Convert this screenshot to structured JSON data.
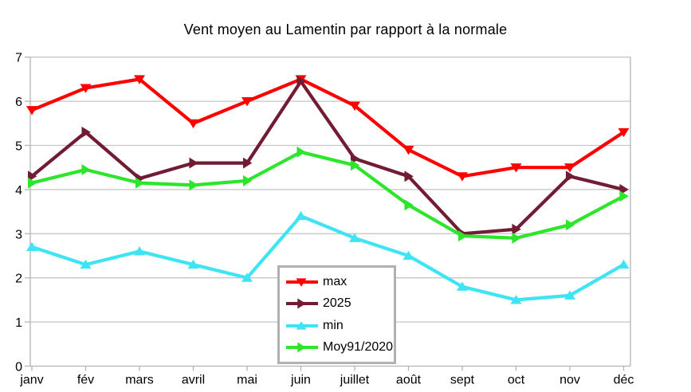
{
  "title": "Vent moyen au Lamentin par rapport à la normale",
  "chart_data": {
    "type": "line",
    "title": "Vent moyen au Lamentin par rapport à la normale",
    "categories": [
      "janv",
      "fév",
      "mars",
      "avril",
      "mai",
      "juin",
      "juillet",
      "août",
      "sept",
      "oct",
      "nov",
      "déc"
    ],
    "series": [
      {
        "name": "max",
        "color": "#ff0000",
        "marker": "triangle-down",
        "values": [
          5.8,
          6.3,
          6.5,
          5.5,
          6.0,
          6.5,
          5.9,
          4.9,
          4.3,
          4.5,
          4.5,
          5.3
        ]
      },
      {
        "name": "2025",
        "color": "#721c34",
        "marker": "triangle-right",
        "values": [
          4.3,
          5.3,
          4.25,
          4.6,
          4.6,
          6.45,
          4.7,
          4.3,
          3.0,
          3.1,
          4.3,
          4.0
        ]
      },
      {
        "name": "min",
        "color": "#3ee4f4",
        "marker": "triangle-up",
        "values": [
          2.7,
          2.3,
          2.6,
          2.3,
          2.0,
          3.4,
          2.9,
          2.5,
          1.8,
          1.5,
          1.6,
          2.3
        ]
      },
      {
        "name": "Moy91/2020",
        "color": "#2de52b",
        "marker": "triangle-right",
        "values": [
          4.15,
          4.45,
          4.15,
          4.1,
          4.2,
          4.85,
          4.55,
          3.65,
          2.95,
          2.9,
          3.2,
          3.85
        ]
      }
    ],
    "xlabel": "",
    "ylabel": "",
    "ylim": [
      0,
      7
    ],
    "ytick_step": 1,
    "grid": "horizontal",
    "legend_position": "inside-bottom-center",
    "legend_entries": [
      "max",
      "2025",
      "min",
      "Moy91/2020"
    ],
    "colors": {
      "background": "#ffffff",
      "gridline": "#c6c6c6",
      "axis": "#b4b4b4",
      "legend_border": "#b1b1b1",
      "text": "#000000"
    }
  }
}
